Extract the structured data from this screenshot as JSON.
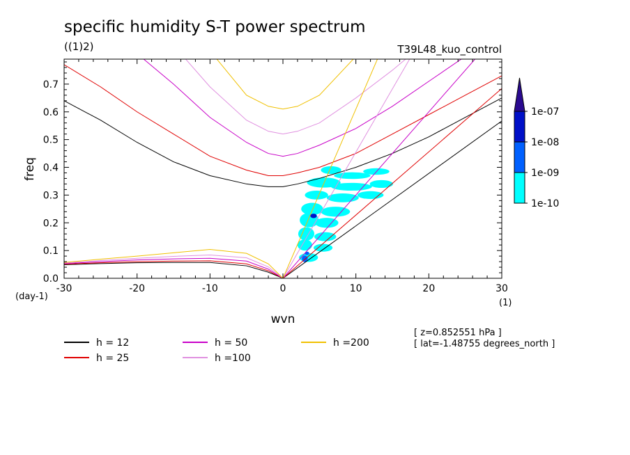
{
  "chart_data": {
    "type": "line",
    "title": "specific humidity S-T power spectrum",
    "subtitle_left": "((1)2)",
    "subtitle_right": "T39L48_kuo_control",
    "xlabel": "wvn",
    "ylabel": "freq",
    "x_unit": "(1)",
    "y_unit": "(day-1)",
    "xlim": [
      -30,
      30
    ],
    "ylim": [
      0,
      0.79
    ],
    "xticks": [
      -30,
      -20,
      -10,
      0,
      10,
      20,
      30
    ],
    "xtick_labels": [
      "-30",
      "-20",
      "-10",
      "0",
      "10",
      "20",
      "30"
    ],
    "yticks": [
      0,
      0.1,
      0.2,
      0.3,
      0.4,
      0.5,
      0.6,
      0.7
    ],
    "ytick_labels": [
      "0.0",
      "0.1",
      "0.2",
      "0.3",
      "0.4",
      "0.5",
      "0.6",
      "0.7"
    ],
    "series": [
      {
        "name": "h = 12",
        "color": "#000000",
        "h": 12
      },
      {
        "name": "h = 25",
        "color": "#e00000",
        "h": 25
      },
      {
        "name": "h = 50",
        "color": "#c800c8",
        "h": 50
      },
      {
        "name": "h =100",
        "color": "#e090e0",
        "h": 100
      },
      {
        "name": "h =200",
        "color": "#f0c000",
        "h": 200
      }
    ],
    "curves": {
      "x": [
        -30,
        -25,
        -20,
        -15,
        -10,
        -5,
        -2,
        0,
        2,
        5,
        10,
        15,
        20,
        25,
        30
      ],
      "inertia_gravity": {
        "h = 12": [
          0.64,
          0.57,
          0.49,
          0.42,
          0.37,
          0.34,
          0.33,
          0.33,
          0.34,
          0.36,
          0.4,
          0.45,
          0.51,
          0.58,
          0.65
        ],
        "h = 25": [
          0.77,
          0.69,
          0.6,
          0.52,
          0.44,
          0.39,
          0.37,
          0.37,
          0.38,
          0.4,
          0.45,
          0.52,
          0.59,
          0.66,
          0.73
        ],
        "h = 50": [
          1.02,
          0.92,
          0.81,
          0.7,
          0.58,
          0.49,
          0.45,
          0.44,
          0.45,
          0.48,
          0.54,
          0.62,
          0.71,
          0.8,
          0.9
        ],
        "h =100": [
          1.3,
          1.15,
          1.0,
          0.84,
          0.69,
          0.57,
          0.53,
          0.52,
          0.53,
          0.56,
          0.65,
          0.75,
          0.86,
          0.97,
          1.08
        ],
        "h =200": [
          1.75,
          1.52,
          1.28,
          1.05,
          0.82,
          0.66,
          0.62,
          0.61,
          0.62,
          0.66,
          0.8,
          0.98,
          1.18,
          1.38,
          1.58
        ]
      },
      "rossby": {
        "h = 12": [
          0.049,
          0.053,
          0.056,
          0.057,
          0.057,
          0.045,
          0.022,
          0.0,
          null,
          null,
          null,
          null,
          null,
          null,
          null
        ],
        "h = 25": [
          0.051,
          0.056,
          0.06,
          0.062,
          0.063,
          0.052,
          0.027,
          0.0,
          null,
          null,
          null,
          null,
          null,
          null,
          null
        ],
        "h = 50": [
          0.053,
          0.06,
          0.066,
          0.07,
          0.072,
          0.062,
          0.033,
          0.0,
          null,
          null,
          null,
          null,
          null,
          null,
          null
        ],
        "h =100": [
          0.055,
          0.064,
          0.072,
          0.079,
          0.084,
          0.074,
          0.041,
          0.0,
          null,
          null,
          null,
          null,
          null,
          null,
          null
        ],
        "h =200": [
          0.057,
          0.069,
          0.08,
          0.092,
          0.104,
          0.09,
          0.052,
          0.0,
          null,
          null,
          null,
          null,
          null,
          null,
          null
        ]
      },
      "kelvin_slope": {
        "h = 12": 0.0189,
        "h = 25": 0.0228,
        "h = 50": 0.03,
        "h =100": 0.0455,
        "h =200": 0.061
      }
    },
    "contour_levels": [
      "1e-10",
      "1e-09",
      "1e-08",
      "1e-07"
    ],
    "contour_colors": [
      "#00ffff",
      "#0060ff",
      "#0010c8",
      "#2a0a90"
    ],
    "contour_patches": [
      {
        "x": 6.6,
        "y": 0.39,
        "rx": 1.4,
        "ry": 0.014,
        "level": 0
      },
      {
        "x": 9.5,
        "y": 0.37,
        "rx": 2.5,
        "ry": 0.012,
        "level": 0
      },
      {
        "x": 12.8,
        "y": 0.385,
        "rx": 1.8,
        "ry": 0.012,
        "level": 0
      },
      {
        "x": 5.6,
        "y": 0.345,
        "rx": 2.3,
        "ry": 0.018,
        "level": 0
      },
      {
        "x": 9.4,
        "y": 0.33,
        "rx": 2.8,
        "ry": 0.014,
        "level": 0
      },
      {
        "x": 13.5,
        "y": 0.34,
        "rx": 1.6,
        "ry": 0.014,
        "level": 0
      },
      {
        "x": 4.6,
        "y": 0.3,
        "rx": 1.6,
        "ry": 0.016,
        "level": 0
      },
      {
        "x": 8.2,
        "y": 0.29,
        "rx": 2.2,
        "ry": 0.016,
        "level": 0
      },
      {
        "x": 12.0,
        "y": 0.3,
        "rx": 1.8,
        "ry": 0.014,
        "level": 0
      },
      {
        "x": 4.0,
        "y": 0.25,
        "rx": 1.5,
        "ry": 0.022,
        "level": 0
      },
      {
        "x": 7.2,
        "y": 0.24,
        "rx": 2.0,
        "ry": 0.018,
        "level": 0
      },
      {
        "x": 3.6,
        "y": 0.21,
        "rx": 1.3,
        "ry": 0.026,
        "level": 0
      },
      {
        "x": 6.0,
        "y": 0.2,
        "rx": 1.6,
        "ry": 0.018,
        "level": 0
      },
      {
        "x": 3.2,
        "y": 0.16,
        "rx": 1.1,
        "ry": 0.024,
        "level": 0
      },
      {
        "x": 5.8,
        "y": 0.15,
        "rx": 1.5,
        "ry": 0.016,
        "level": 0
      },
      {
        "x": 3.0,
        "y": 0.12,
        "rx": 1.0,
        "ry": 0.02,
        "level": 0
      },
      {
        "x": 5.5,
        "y": 0.11,
        "rx": 1.3,
        "ry": 0.014,
        "level": 0
      },
      {
        "x": 3.5,
        "y": 0.075,
        "rx": 1.3,
        "ry": 0.016,
        "level": 0
      },
      {
        "x": 4.2,
        "y": 0.225,
        "rx": 0.45,
        "ry": 0.008,
        "level": 2
      },
      {
        "x": 3.0,
        "y": 0.07,
        "rx": 0.4,
        "ry": 0.012,
        "level": 1
      },
      {
        "x": 3.3,
        "y": 0.09,
        "rx": 0.3,
        "ry": 0.006,
        "level": 1
      }
    ],
    "info_lines": [
      "[ z=0.852551 hPa ]",
      "[ lat=-1.48755 degrees_north ]"
    ]
  }
}
